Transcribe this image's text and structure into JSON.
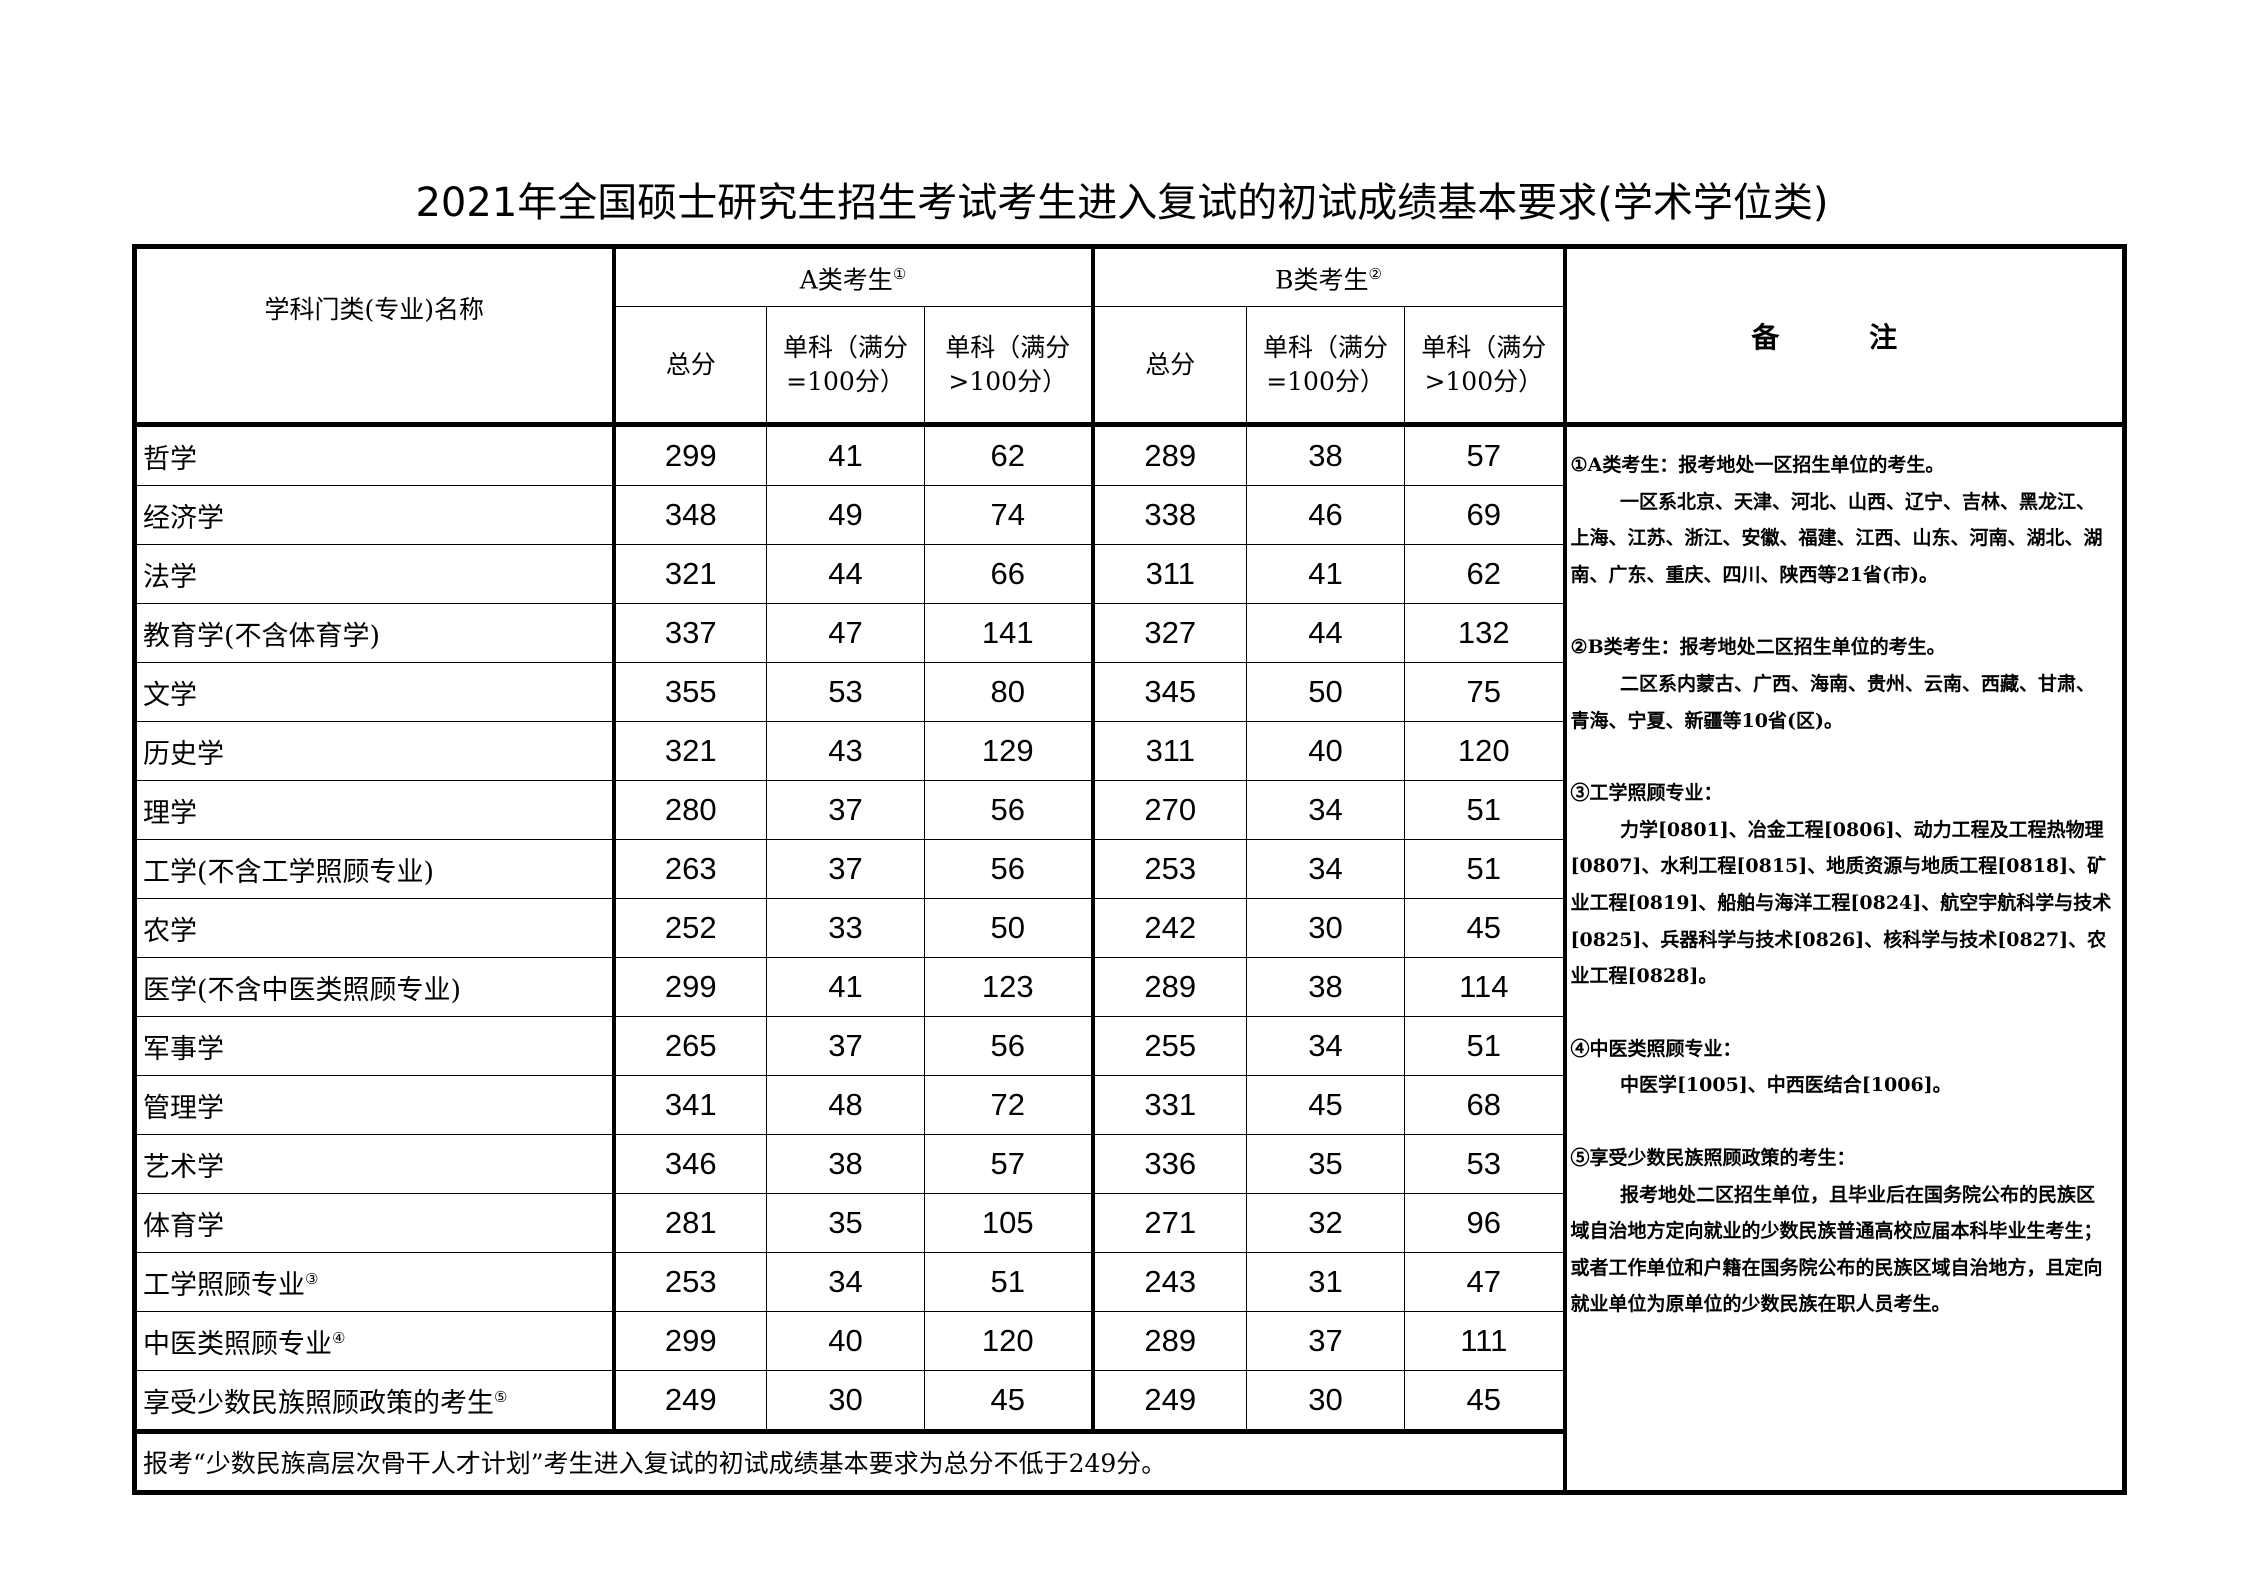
{
  "title": "2021年全国硕士研究生招生考试考生进入复试的初试成绩基本要求(学术学位类)",
  "header": {
    "subject": "学科门类(专业)名称",
    "group_a": "A类考生",
    "group_a_mark": "①",
    "group_b": "B类考生",
    "group_b_mark": "②",
    "total": "总分",
    "single_100": "单科（满分=100分）",
    "single_gt100": "单科（满分>100分）",
    "remarks": "备 注"
  },
  "rows": [
    {
      "name": "哲学",
      "mark": "",
      "a": [
        "299",
        "41",
        "62"
      ],
      "b": [
        "289",
        "38",
        "57"
      ]
    },
    {
      "name": "经济学",
      "mark": "",
      "a": [
        "348",
        "49",
        "74"
      ],
      "b": [
        "338",
        "46",
        "69"
      ]
    },
    {
      "name": "法学",
      "mark": "",
      "a": [
        "321",
        "44",
        "66"
      ],
      "b": [
        "311",
        "41",
        "62"
      ]
    },
    {
      "name": "教育学(不含体育学)",
      "mark": "",
      "a": [
        "337",
        "47",
        "141"
      ],
      "b": [
        "327",
        "44",
        "132"
      ]
    },
    {
      "name": "文学",
      "mark": "",
      "a": [
        "355",
        "53",
        "80"
      ],
      "b": [
        "345",
        "50",
        "75"
      ]
    },
    {
      "name": "历史学",
      "mark": "",
      "a": [
        "321",
        "43",
        "129"
      ],
      "b": [
        "311",
        "40",
        "120"
      ]
    },
    {
      "name": "理学",
      "mark": "",
      "a": [
        "280",
        "37",
        "56"
      ],
      "b": [
        "270",
        "34",
        "51"
      ]
    },
    {
      "name": "工学(不含工学照顾专业)",
      "mark": "",
      "a": [
        "263",
        "37",
        "56"
      ],
      "b": [
        "253",
        "34",
        "51"
      ]
    },
    {
      "name": "农学",
      "mark": "",
      "a": [
        "252",
        "33",
        "50"
      ],
      "b": [
        "242",
        "30",
        "45"
      ]
    },
    {
      "name": "医学(不含中医类照顾专业)",
      "mark": "",
      "a": [
        "299",
        "41",
        "123"
      ],
      "b": [
        "289",
        "38",
        "114"
      ]
    },
    {
      "name": "军事学",
      "mark": "",
      "a": [
        "265",
        "37",
        "56"
      ],
      "b": [
        "255",
        "34",
        "51"
      ]
    },
    {
      "name": "管理学",
      "mark": "",
      "a": [
        "341",
        "48",
        "72"
      ],
      "b": [
        "331",
        "45",
        "68"
      ]
    },
    {
      "name": "艺术学",
      "mark": "",
      "a": [
        "346",
        "38",
        "57"
      ],
      "b": [
        "336",
        "35",
        "53"
      ]
    },
    {
      "name": "体育学",
      "mark": "",
      "a": [
        "281",
        "35",
        "105"
      ],
      "b": [
        "271",
        "32",
        "96"
      ]
    },
    {
      "name": "工学照顾专业",
      "mark": "③",
      "a": [
        "253",
        "34",
        "51"
      ],
      "b": [
        "243",
        "31",
        "47"
      ]
    },
    {
      "name": "中医类照顾专业",
      "mark": "④",
      "a": [
        "299",
        "40",
        "120"
      ],
      "b": [
        "289",
        "37",
        "111"
      ]
    },
    {
      "name": "享受少数民族照顾政策的考生",
      "mark": "⑤",
      "a": [
        "249",
        "30",
        "45"
      ],
      "b": [
        "249",
        "30",
        "45"
      ]
    }
  ],
  "footer": "报考“少数民族高层次骨干人才计划”考生进入复试的初试成绩基本要求为总分不低于249分。",
  "notes": [
    {
      "head": "①A类考生：报考地处一区招生单位的考生。",
      "body": "一区系北京、天津、河北、山西、辽宁、吉林、黑龙江、上海、江苏、浙江、安徽、福建、江西、山东、河南、湖北、湖南、广东、重庆、四川、陕西等21省(市)。"
    },
    {
      "head": "②B类考生：报考地处二区招生单位的考生。",
      "body": "二区系内蒙古、广西、海南、贵州、云南、西藏、甘肃、青海、宁夏、新疆等10省(区)。"
    },
    {
      "head": "③工学照顾专业：",
      "body": "力学[0801]、冶金工程[0806]、动力工程及工程热物理[0807]、水利工程[0815]、地质资源与地质工程[0818]、矿业工程[0819]、船舶与海洋工程[0824]、航空宇航科学与技术[0825]、兵器科学与技术[0826]、核科学与技术[0827]、农业工程[0828]。"
    },
    {
      "head": "④中医类照顾专业：",
      "body": "中医学[1005]、中西医结合[1006]。"
    },
    {
      "head": "⑤享受少数民族照顾政策的考生：",
      "body": "报考地处二区招生单位，且毕业后在国务院公布的民族区域自治地方定向就业的少数民族普通高校应届本科毕业生考生；或者工作单位和户籍在国务院公布的民族区域自治地方，且定向就业单位为原单位的少数民族在职人员考生。"
    }
  ]
}
